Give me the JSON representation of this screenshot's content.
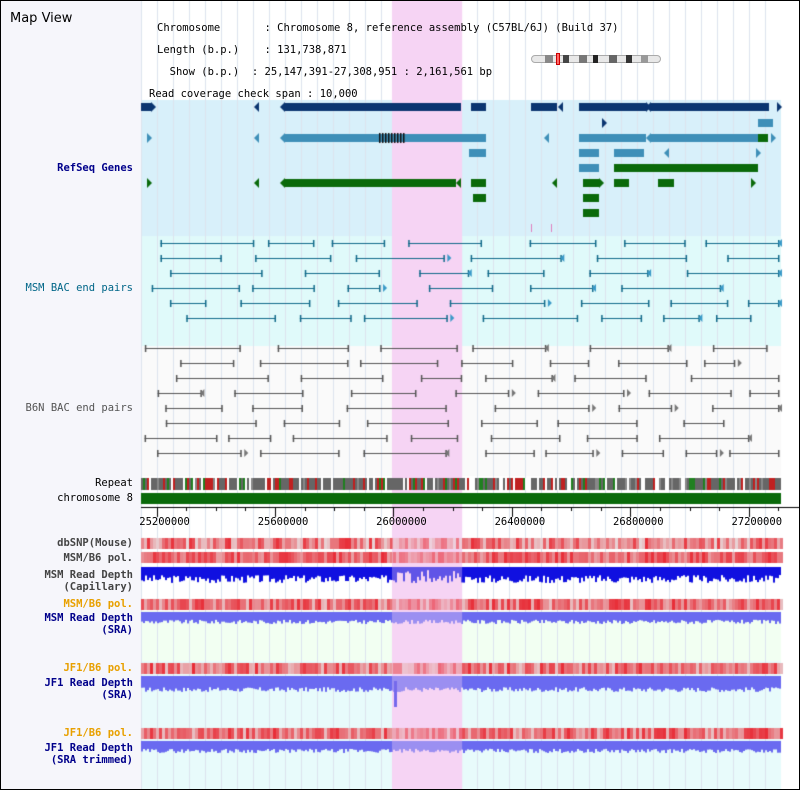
{
  "title": "Map View",
  "info": {
    "chromosome_key": "Chromosome",
    "chromosome_value": "Chromosome 8, reference assembly (C57BL/6J) (Build 37)",
    "length_key": "Length (b.p.)",
    "length_value": "131,738,871",
    "show_key": "Show (b.p.)",
    "show_value": "25,147,391-27,308,951 : 2,161,561 bp",
    "coverage_key": "Read coverage check span",
    "coverage_value": "10,000"
  },
  "tracks": {
    "refseq": "RefSeq Genes",
    "msm_bac": "MSM BAC end pairs",
    "b6n_bac": "B6N BAC end pairs",
    "repeat": "Repeat",
    "chromosome": "chromosome 8",
    "dbsnp": "dbSNP(Mouse)",
    "msm_b6_pol": "MSM/B6 pol.",
    "msm_depth_cap_1": "MSM Read Depth",
    "msm_depth_cap_2": "(Capillary)",
    "msm_b6_pol_2": "MSM/B6 pol.",
    "msm_depth_sra_1": "MSM Read Depth",
    "msm_depth_sra_2": "(SRA)",
    "jf1_b6_pol": "JF1/B6 pol.",
    "jf1_depth_sra_1": "JF1 Read Depth",
    "jf1_depth_sra_2": "(SRA)",
    "jf1_b6_pol_2": "JF1/B6 pol.",
    "jf1_depth_trim_1": "JF1 Read Depth",
    "jf1_depth_trim_2": "(SRA trimmed)"
  },
  "axis": {
    "ticks": [
      "25200000",
      "25600000",
      "26000000",
      "26400000",
      "26800000",
      "27200000"
    ],
    "tick_values": [
      25200000,
      25600000,
      26000000,
      26400000,
      26800000,
      27200000
    ],
    "range": [
      25147391,
      27308951
    ]
  },
  "highlight_range": [
    25995000,
    26232000
  ],
  "colors": {
    "refseq_bg": "#d8f0fa",
    "bac_bg": "#e0fafa",
    "highlight": "#f6d4f4",
    "gene_dark": "#0b3570",
    "gene_mid": "#3e8fb8",
    "gene_green": "#0a6a0a",
    "msm_bac": "#116a8a",
    "b6n_bac": "#555555",
    "chrom": "#0a6a0a",
    "snp_red": "#e83030",
    "depth_blue": "#1010e0",
    "depth_light": "#6a6af0"
  }
}
